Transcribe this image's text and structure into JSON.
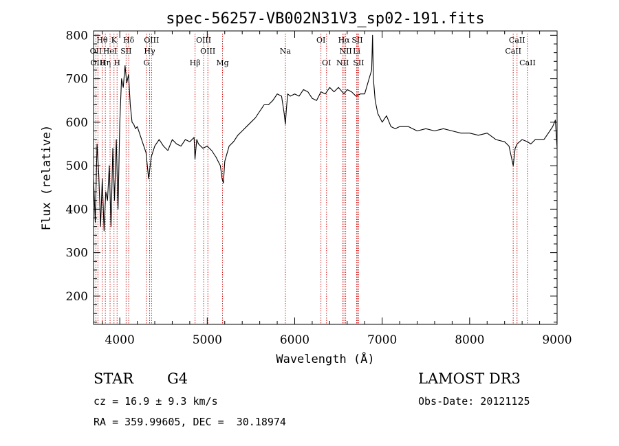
{
  "chart_data": {
    "type": "line",
    "title": "spec-56257-VB002N31V3_sp02-191.fits",
    "xlabel": "Wavelength (Å)",
    "ylabel": "Flux (relative)",
    "xlim": [
      3700,
      9000
    ],
    "ylim": [
      135,
      810
    ],
    "xticks": [
      4000,
      5000,
      6000,
      7000,
      8000,
      9000
    ],
    "yticks": [
      200,
      300,
      400,
      500,
      600,
      700,
      800
    ],
    "series": [
      {
        "name": "spectrum",
        "x": [
          3700,
          3720,
          3740,
          3760,
          3780,
          3800,
          3820,
          3840,
          3860,
          3880,
          3900,
          3920,
          3940,
          3960,
          3980,
          4000,
          4020,
          4040,
          4060,
          4080,
          4100,
          4120,
          4140,
          4160,
          4180,
          4200,
          4250,
          4300,
          4330,
          4360,
          4400,
          4450,
          4500,
          4550,
          4600,
          4650,
          4700,
          4750,
          4800,
          4850,
          4860,
          4880,
          4900,
          4950,
          5000,
          5050,
          5100,
          5150,
          5170,
          5185,
          5200,
          5250,
          5300,
          5350,
          5400,
          5450,
          5500,
          5550,
          5600,
          5650,
          5700,
          5750,
          5800,
          5850,
          5880,
          5893,
          5905,
          5920,
          5950,
          6000,
          6050,
          6100,
          6150,
          6200,
          6250,
          6300,
          6350,
          6400,
          6450,
          6500,
          6563,
          6600,
          6650,
          6700,
          6750,
          6800,
          6850,
          6880,
          6890,
          6900,
          6920,
          6950,
          7000,
          7050,
          7100,
          7150,
          7200,
          7300,
          7400,
          7500,
          7600,
          7700,
          7800,
          7900,
          8000,
          8100,
          8200,
          8300,
          8400,
          8450,
          8498,
          8520,
          8542,
          8600,
          8662,
          8700,
          8750,
          8800,
          8850,
          8900,
          8950,
          8980,
          9000
        ],
        "y": [
          470,
          370,
          550,
          480,
          360,
          470,
          350,
          440,
          420,
          500,
          360,
          540,
          420,
          560,
          400,
          600,
          700,
          680,
          730,
          690,
          710,
          640,
          600,
          595,
          585,
          590,
          560,
          530,
          470,
          520,
          545,
          560,
          545,
          535,
          560,
          550,
          545,
          560,
          555,
          565,
          515,
          560,
          550,
          540,
          545,
          535,
          520,
          500,
          470,
          460,
          510,
          545,
          555,
          570,
          580,
          590,
          600,
          610,
          625,
          640,
          640,
          650,
          665,
          660,
          620,
          595,
          630,
          665,
          660,
          665,
          660,
          675,
          670,
          655,
          650,
          670,
          665,
          680,
          670,
          680,
          665,
          675,
          670,
          660,
          665,
          665,
          700,
          720,
          800,
          700,
          650,
          620,
          600,
          615,
          590,
          585,
          590,
          590,
          580,
          585,
          580,
          585,
          580,
          575,
          575,
          570,
          575,
          560,
          555,
          545,
          500,
          540,
          550,
          560,
          555,
          550,
          560,
          560,
          560,
          575,
          590,
          605,
          540
        ]
      }
    ],
    "lines": [
      {
        "label": "Hθ",
        "wave": 3798,
        "row": 0
      },
      {
        "label": "OII",
        "wave": 3727,
        "row": 1
      },
      {
        "label": "OIII",
        "wave": 3750,
        "row": 2
      },
      {
        "label": "K",
        "wave": 3934,
        "row": 0
      },
      {
        "label": "Hη",
        "wave": 3835,
        "row": 2
      },
      {
        "label": "HeI",
        "wave": 3889,
        "row": 1
      },
      {
        "label": "SII",
        "wave": 4072,
        "row": 1
      },
      {
        "label": "H",
        "wave": 3969,
        "row": 2
      },
      {
        "label": "Hδ",
        "wave": 4102,
        "row": 0
      },
      {
        "label": "OIII",
        "wave": 4363,
        "row": 0
      },
      {
        "label": "Hγ",
        "wave": 4341,
        "row": 1
      },
      {
        "label": "G",
        "wave": 4305,
        "row": 2
      },
      {
        "label": "OIII",
        "wave": 4959,
        "row": 0
      },
      {
        "label": "OIII",
        "wave": 5007,
        "row": 1
      },
      {
        "label": "Hβ",
        "wave": 4861,
        "row": 2
      },
      {
        "label": "Mg",
        "wave": 5175,
        "row": 2
      },
      {
        "label": "Na",
        "wave": 5893,
        "row": 1
      },
      {
        "label": "OI",
        "wave": 6300,
        "row": 0
      },
      {
        "label": "OI",
        "wave": 6364,
        "row": 2
      },
      {
        "label": "Hα",
        "wave": 6563,
        "row": 0
      },
      {
        "label": "SII",
        "wave": 6716,
        "row": 0
      },
      {
        "label": "NII",
        "wave": 6583,
        "row": 1
      },
      {
        "label": "Li",
        "wave": 6708,
        "row": 1
      },
      {
        "label": "NII",
        "wave": 6548,
        "row": 2
      },
      {
        "label": "SII",
        "wave": 6731,
        "row": 2
      },
      {
        "label": "CaII",
        "wave": 8542,
        "row": 0
      },
      {
        "label": "CaII",
        "wave": 8498,
        "row": 1
      },
      {
        "label": "CaII",
        "wave": 8662,
        "row": 2
      }
    ],
    "line_color": "#cc0000"
  },
  "info": {
    "object_type": "STAR",
    "subclass": "G4",
    "survey": "LAMOST DR3",
    "redshift": "cz = 16.9 ± 9.3 km/s",
    "obs_date": "Obs-Date: 20121125",
    "coords": "RA = 359.99605, DEC =  30.18974"
  }
}
